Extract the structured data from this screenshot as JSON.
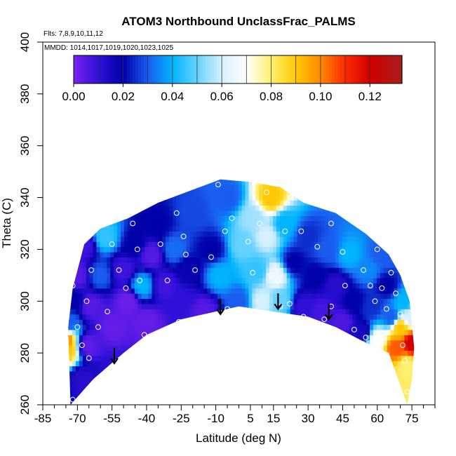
{
  "chart_data": {
    "type": "heatmap",
    "title": "ATOM3 Northbound UnclassFrac_PALMS",
    "subtitle_flights": "Flts: 7,8,9,10,11,12",
    "subtitle_dates": "MMDD: 1014,1017,1019,1020,1023,1025",
    "xlabel": "Latitude (deg N)",
    "ylabel": "Theta (C)",
    "xlim": [
      -85,
      85
    ],
    "ylim": [
      260,
      400
    ],
    "x_ticks": [
      -85,
      -70,
      -55,
      -40,
      -25,
      -10,
      5,
      15,
      30,
      45,
      60,
      75
    ],
    "x_minor_ticks": [
      -80,
      -75,
      -65,
      -60,
      -50,
      -45,
      -35,
      -30,
      -20,
      -15,
      -5,
      0,
      10,
      20,
      25,
      35,
      40,
      50,
      55,
      65,
      70,
      80,
      85
    ],
    "y_ticks": [
      260,
      280,
      300,
      320,
      340,
      360,
      380,
      400
    ],
    "colorbar": {
      "range": [
        0,
        0.133
      ],
      "ticks": [
        "0.00",
        "0.02",
        "0.04",
        "0.06",
        "0.08",
        "0.10",
        "0.12"
      ],
      "tick_values": [
        0,
        0.02,
        0.04,
        0.06,
        0.08,
        0.1,
        0.12
      ],
      "dividers": [
        0.01,
        0.02,
        0.03,
        0.04,
        0.05,
        0.06,
        0.07,
        0.08,
        0.09,
        0.1,
        0.11,
        0.12
      ],
      "stops": [
        {
          "v": 0.0,
          "color": "#7B22F0"
        },
        {
          "v": 0.01,
          "color": "#3010D8"
        },
        {
          "v": 0.02,
          "color": "#0000A8"
        },
        {
          "v": 0.03,
          "color": "#1A5CF0"
        },
        {
          "v": 0.04,
          "color": "#00B4FF"
        },
        {
          "v": 0.05,
          "color": "#66D2FF"
        },
        {
          "v": 0.06,
          "color": "#D8F0FF"
        },
        {
          "v": 0.07,
          "color": "#FFFFFF"
        },
        {
          "v": 0.08,
          "color": "#FFF070"
        },
        {
          "v": 0.09,
          "color": "#FFC800"
        },
        {
          "v": 0.1,
          "color": "#FF8A00"
        },
        {
          "v": 0.11,
          "color": "#FF2A00"
        },
        {
          "v": 0.12,
          "color": "#D00000"
        },
        {
          "v": 0.133,
          "color": "#A81E1E"
        }
      ]
    },
    "boundary_lower": [
      [
        -73,
        260
      ],
      [
        -63,
        270
      ],
      [
        -50,
        280
      ],
      [
        -40,
        287
      ],
      [
        -25,
        293
      ],
      [
        0,
        298
      ],
      [
        15,
        296
      ],
      [
        30,
        294
      ],
      [
        42,
        290
      ],
      [
        55,
        284
      ],
      [
        65,
        280
      ],
      [
        73,
        260
      ]
    ],
    "boundary_upper": [
      [
        -73,
        260
      ],
      [
        -74,
        290
      ],
      [
        -72,
        305
      ],
      [
        -67,
        322
      ],
      [
        -60,
        328
      ],
      [
        -48,
        332
      ],
      [
        -35,
        338
      ],
      [
        -20,
        343
      ],
      [
        -8,
        347
      ],
      [
        5,
        346
      ],
      [
        18,
        344
      ],
      [
        28,
        338
      ],
      [
        42,
        334
      ],
      [
        55,
        326
      ],
      [
        65,
        318
      ],
      [
        70,
        310
      ],
      [
        74,
        300
      ],
      [
        76,
        282
      ],
      [
        75,
        270
      ],
      [
        73,
        260
      ]
    ],
    "field": [
      [
        -76,
        285,
        0.105
      ],
      [
        -75,
        281,
        0.09
      ],
      [
        -74,
        292,
        0.03
      ],
      [
        -72,
        300,
        0.02
      ],
      [
        -70,
        310,
        0.005
      ],
      [
        -67,
        322,
        0.008
      ],
      [
        -68,
        270,
        0.012
      ],
      [
        -65,
        283,
        0.004
      ],
      [
        -64,
        298,
        0.005
      ],
      [
        -60,
        310,
        0.03
      ],
      [
        -58,
        325,
        0.045
      ],
      [
        -55,
        290,
        0.003
      ],
      [
        -52,
        270,
        0.01
      ],
      [
        -50,
        312,
        0.008
      ],
      [
        -48,
        300,
        0.002
      ],
      [
        -45,
        322,
        0.02
      ],
      [
        -42,
        306,
        0.04
      ],
      [
        -40,
        292,
        0.003
      ],
      [
        -38,
        318,
        0.005
      ],
      [
        -35,
        330,
        0.02
      ],
      [
        -32,
        306,
        0.008
      ],
      [
        -28,
        320,
        0.032
      ],
      [
        -25,
        300,
        0.01
      ],
      [
        -22,
        312,
        0.018
      ],
      [
        -20,
        334,
        0.028
      ],
      [
        -15,
        296,
        0.005
      ],
      [
        -12,
        320,
        0.02
      ],
      [
        -8,
        310,
        0.04
      ],
      [
        -5,
        340,
        0.03
      ],
      [
        0,
        300,
        0.03
      ],
      [
        2,
        322,
        0.05
      ],
      [
        6,
        332,
        0.055
      ],
      [
        8,
        312,
        0.045
      ],
      [
        10,
        300,
        0.06
      ],
      [
        12,
        325,
        0.06
      ],
      [
        14,
        340,
        0.09
      ],
      [
        16,
        310,
        0.065
      ],
      [
        18,
        300,
        0.05
      ],
      [
        20,
        330,
        0.04
      ],
      [
        24,
        315,
        0.02
      ],
      [
        28,
        298,
        0.01
      ],
      [
        30,
        325,
        0.025
      ],
      [
        33,
        310,
        0.02
      ],
      [
        36,
        296,
        0.007
      ],
      [
        38,
        320,
        0.03
      ],
      [
        42,
        306,
        0.012
      ],
      [
        45,
        292,
        0.006
      ],
      [
        48,
        318,
        0.04
      ],
      [
        50,
        300,
        0.02
      ],
      [
        53,
        288,
        0.015
      ],
      [
        56,
        312,
        0.035
      ],
      [
        58,
        298,
        0.025
      ],
      [
        60,
        285,
        0.07
      ],
      [
        62,
        318,
        0.03
      ],
      [
        64,
        306,
        0.02
      ],
      [
        66,
        294,
        0.03
      ],
      [
        68,
        282,
        0.105
      ],
      [
        70,
        290,
        0.09
      ],
      [
        72,
        300,
        0.04
      ],
      [
        73,
        275,
        0.08
      ],
      [
        75,
        284,
        0.12
      ],
      [
        74,
        294,
        0.06
      ]
    ],
    "sample_points": [
      [
        -72,
        306
      ],
      [
        -70,
        290
      ],
      [
        -68,
        283
      ],
      [
        -66,
        300
      ],
      [
        -66,
        326
      ],
      [
        -64,
        312
      ],
      [
        -61,
        290
      ],
      [
        -57,
        296
      ],
      [
        -55,
        322
      ],
      [
        -52,
        312
      ],
      [
        -49,
        305
      ],
      [
        -46,
        330
      ],
      [
        -44,
        320
      ],
      [
        -43,
        308
      ],
      [
        -41,
        287
      ],
      [
        -37,
        287
      ],
      [
        -34,
        322
      ],
      [
        -31,
        308
      ],
      [
        -27,
        334
      ],
      [
        -24,
        325
      ],
      [
        -23,
        318
      ],
      [
        -19,
        312
      ],
      [
        -12,
        317
      ],
      [
        -9,
        345
      ],
      [
        -6,
        327
      ],
      [
        -3,
        332
      ],
      [
        4,
        323
      ],
      [
        6,
        311
      ],
      [
        9,
        330
      ],
      [
        12,
        342
      ],
      [
        14,
        310
      ],
      [
        17,
        308
      ],
      [
        20,
        327
      ],
      [
        27,
        327
      ],
      [
        28,
        294
      ],
      [
        34,
        321
      ],
      [
        37,
        293
      ],
      [
        40,
        330
      ],
      [
        45,
        319
      ],
      [
        46,
        306
      ],
      [
        50,
        289
      ],
      [
        54,
        312
      ],
      [
        55,
        286
      ],
      [
        57,
        306
      ],
      [
        59,
        300
      ],
      [
        60,
        320
      ],
      [
        62,
        305
      ],
      [
        64,
        297
      ],
      [
        66,
        311
      ],
      [
        68,
        303
      ],
      [
        70,
        295
      ],
      [
        71,
        283
      ],
      [
        72,
        277
      ],
      [
        73,
        265
      ],
      [
        -72,
        262
      ],
      [
        -58,
        270
      ],
      [
        -65,
        278
      ],
      [
        -26,
        292
      ],
      [
        -5,
        297
      ],
      [
        18,
        298
      ],
      [
        40,
        298
      ],
      [
        22,
        299
      ],
      [
        31,
        291
      ]
    ],
    "arrows": [
      {
        "x": -54,
        "y_top": 282,
        "y_bot": 276
      },
      {
        "x": -8,
        "y_top": 301,
        "y_bot": 295
      },
      {
        "x": 17,
        "y_top": 303,
        "y_bot": 297
      },
      {
        "x": 39,
        "y_top": 299,
        "y_bot": 293
      }
    ]
  }
}
